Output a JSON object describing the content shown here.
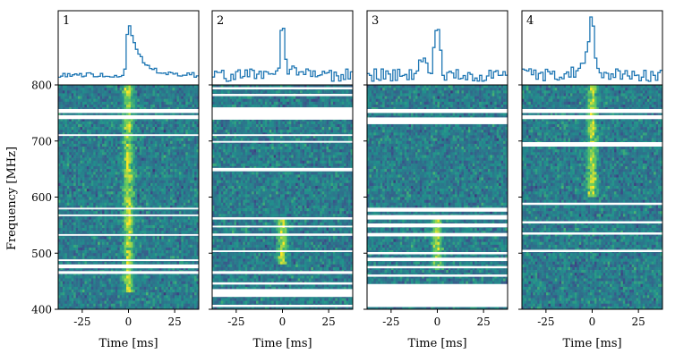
{
  "chart_data": {
    "type": "heatmap",
    "shared_ylabel": "Frequency [MHz]",
    "ylim": [
      400,
      800
    ],
    "xlim": [
      -38,
      38
    ],
    "yticks": [
      400,
      500,
      600,
      700,
      800
    ],
    "xticks": [
      -25,
      0,
      25
    ],
    "colormap": "viridis",
    "profile_color": "#1f77b4",
    "panels": [
      {
        "label": "1",
        "xlabel": "Time [ms]",
        "burst_time_ms": 0,
        "burst_freq_range_mhz": [
          430,
          800
        ],
        "profile_peak_ms": 0,
        "masked_channels_mhz": [
          [
            739,
            746
          ],
          [
            750,
            757
          ],
          [
            709,
            712
          ],
          [
            578,
            581
          ],
          [
            566,
            569
          ],
          [
            531,
            534
          ],
          [
            486,
            489
          ],
          [
            473,
            480
          ],
          [
            463,
            468
          ]
        ]
      },
      {
        "label": "2",
        "xlabel": "Time [ms]",
        "burst_time_ms": 0,
        "burst_freq_range_mhz": [
          480,
          560
        ],
        "profile_peak_ms": 0,
        "masked_channels_mhz": [
          [
            792,
            796
          ],
          [
            780,
            784
          ],
          [
            738,
            760
          ],
          [
            709,
            712
          ],
          [
            697,
            700
          ],
          [
            646,
            652
          ],
          [
            560,
            564
          ],
          [
            546,
            549
          ],
          [
            531,
            535
          ],
          [
            502,
            505
          ],
          [
            463,
            468
          ],
          [
            444,
            448
          ],
          [
            422,
            436
          ],
          [
            404,
            408
          ]
        ]
      },
      {
        "label": "3",
        "xlabel": "Time [ms]",
        "burst_time_ms": 0,
        "burst_freq_range_mhz": [
          470,
          560
        ],
        "profile_peak_ms": 0,
        "masked_channels_mhz": [
          [
            750,
            757
          ],
          [
            730,
            742
          ],
          [
            574,
            581
          ],
          [
            560,
            568
          ],
          [
            546,
            553
          ],
          [
            530,
            536
          ],
          [
            498,
            502
          ],
          [
            486,
            492
          ],
          [
            473,
            477
          ],
          [
            458,
            462
          ],
          [
            404,
            445
          ]
        ]
      },
      {
        "label": "4",
        "xlabel": "Time [ms]",
        "burst_time_ms": 0,
        "burst_freq_range_mhz": [
          600,
          800
        ],
        "profile_peak_ms": 0,
        "masked_channels_mhz": [
          [
            739,
            746
          ],
          [
            750,
            757
          ],
          [
            690,
            698
          ],
          [
            586,
            590
          ],
          [
            553,
            557
          ],
          [
            533,
            537
          ],
          [
            502,
            506
          ]
        ]
      }
    ]
  }
}
